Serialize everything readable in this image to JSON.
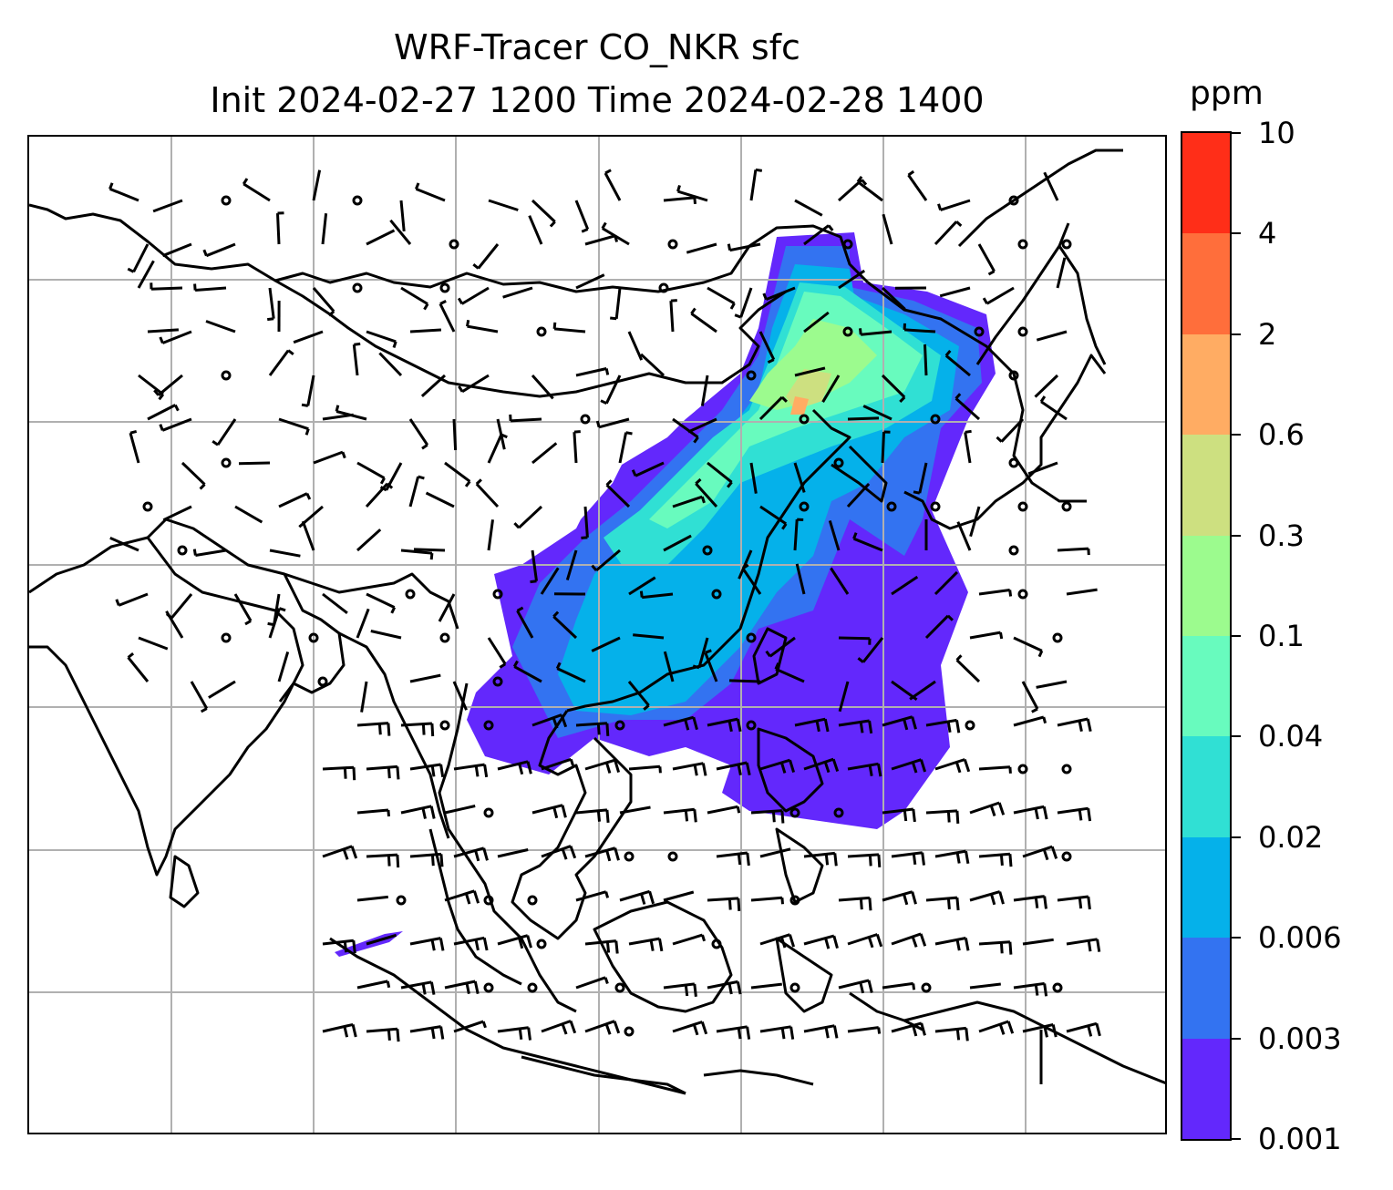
{
  "title": {
    "line1": "WRF-Tracer CO_NKR sfc",
    "line2": "Init 2024-02-27 1200 Time 2024-02-28 1400"
  },
  "colorbar": {
    "unit": "ppm",
    "ticks": [
      "0.001",
      "0.003",
      "0.006",
      "0.02",
      "0.04",
      "0.1",
      "0.3",
      "0.6",
      "2",
      "4",
      "10"
    ],
    "colors": [
      "#6328fc",
      "#3373f1",
      "#05b1ea",
      "#30e0d4",
      "#68fbbe",
      "#9cfb8e",
      "#cde080",
      "#ffac63",
      "#ff6e3b",
      "#ff2e18"
    ]
  },
  "map": {
    "style": {
      "coastline_color": "#000000",
      "grid_color": "#b0b0b0",
      "background": "#ffffff"
    },
    "features": [
      "coastlines",
      "country-borders",
      "lat-lon-gridlines",
      "wind-barbs",
      "calm-wind-circles",
      "tracer-concentration-shading"
    ]
  }
}
